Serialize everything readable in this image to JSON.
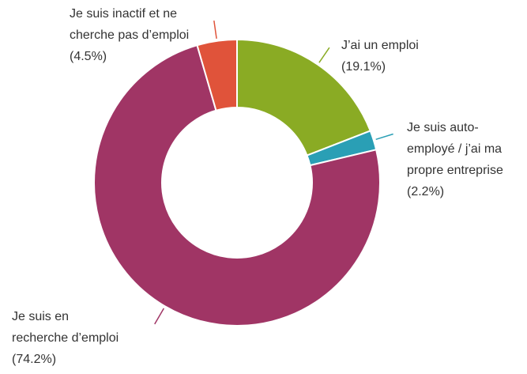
{
  "chart_data": {
    "type": "donut",
    "categories": [
      "J’ai un emploi",
      "Je suis auto-employé / j’ai ma propre entreprise",
      "Je suis en recherche d’emploi",
      "Je suis inactif et ne cherche pas d’emploi"
    ],
    "values": [
      19.1,
      2.2,
      74.2,
      4.5
    ],
    "value_labels": [
      "(19.1%)",
      "(2.2%)",
      "(74.2%)",
      "(4.5%)"
    ],
    "colors": [
      "#8aab24",
      "#2a9fb5",
      "#a03565",
      "#e0533a"
    ]
  }
}
